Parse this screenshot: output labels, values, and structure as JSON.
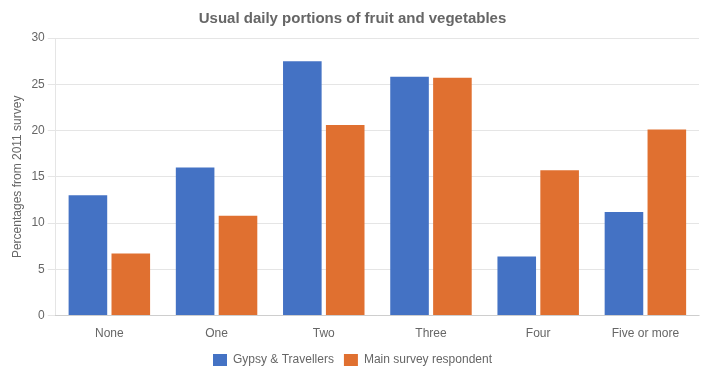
{
  "chart_data": {
    "type": "bar",
    "title": "Usual daily portions of fruit and vegetables",
    "categories": [
      "None",
      "One",
      "Two",
      "Three",
      "Four",
      "Five or more"
    ],
    "series": [
      {
        "name": "Gypsy & Travellers",
        "color": "#4472C4",
        "values": [
          13.0,
          16.0,
          27.5,
          25.8,
          6.4,
          11.2
        ]
      },
      {
        "name": "Main survey respondent",
        "color": "#E07030",
        "values": [
          6.7,
          10.8,
          20.6,
          25.7,
          15.7,
          20.1
        ]
      }
    ],
    "ylabel": "Percentages from 2011 survey",
    "ylim": [
      0,
      30
    ],
    "yticks": [
      0,
      5,
      10,
      15,
      20,
      25,
      30
    ],
    "grid": true,
    "legend": "bottom"
  }
}
